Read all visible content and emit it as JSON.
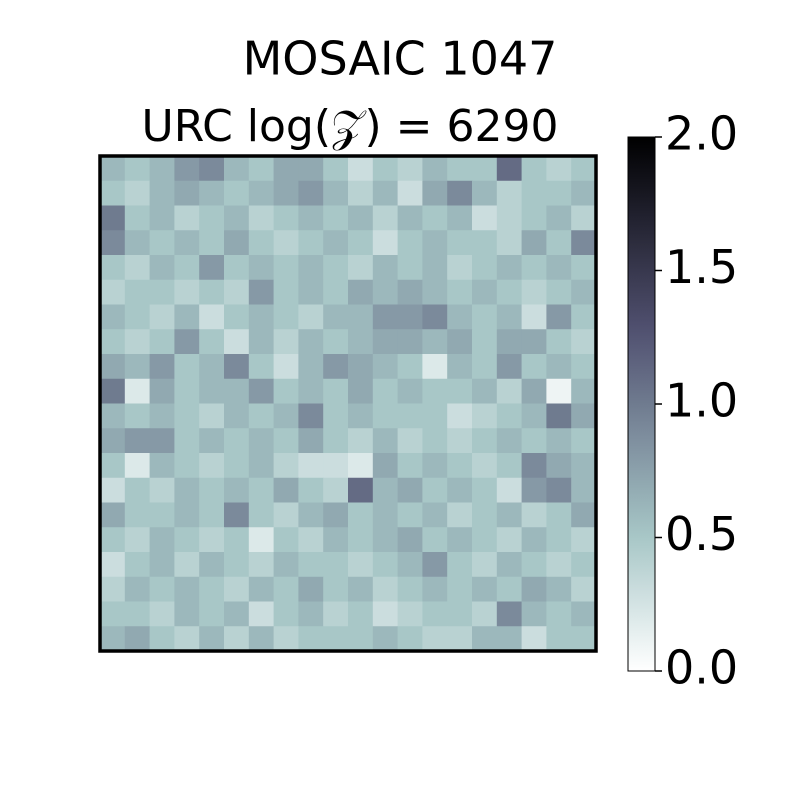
{
  "chart_data": {
    "type": "heatmap",
    "title": "MOSAIC 1047",
    "subtitle": "URC log(𝒵) = 6290",
    "colormap": "bone_r",
    "clim": [
      0,
      2
    ],
    "cticks": [
      {
        "value": 0,
        "label": "0.0"
      },
      {
        "value": 0.5,
        "label": "0.5"
      },
      {
        "value": 1,
        "label": "1.0"
      },
      {
        "value": 1.5,
        "label": "1.5"
      },
      {
        "value": 2,
        "label": "2.0"
      }
    ],
    "z": [
      [
        0.6,
        0.5,
        0.6,
        0.8,
        0.9,
        0.6,
        0.5,
        0.7,
        0.7,
        0.5,
        0.3,
        0.5,
        0.4,
        0.6,
        0.5,
        0.5,
        1.1,
        0.5,
        0.4,
        0.5
      ],
      [
        0.5,
        0.4,
        0.6,
        0.7,
        0.6,
        0.5,
        0.6,
        0.7,
        0.8,
        0.6,
        0.4,
        0.6,
        0.3,
        0.7,
        0.9,
        0.6,
        0.4,
        0.5,
        0.5,
        0.6
      ],
      [
        1.0,
        0.5,
        0.6,
        0.4,
        0.5,
        0.6,
        0.4,
        0.5,
        0.6,
        0.5,
        0.6,
        0.4,
        0.6,
        0.5,
        0.6,
        0.3,
        0.4,
        0.5,
        0.6,
        0.4
      ],
      [
        0.9,
        0.6,
        0.5,
        0.6,
        0.5,
        0.7,
        0.5,
        0.4,
        0.5,
        0.6,
        0.5,
        0.3,
        0.5,
        0.6,
        0.5,
        0.5,
        0.4,
        0.7,
        0.5,
        0.9
      ],
      [
        0.5,
        0.4,
        0.6,
        0.5,
        0.8,
        0.5,
        0.6,
        0.5,
        0.6,
        0.5,
        0.4,
        0.6,
        0.5,
        0.6,
        0.4,
        0.5,
        0.6,
        0.5,
        0.6,
        0.5
      ],
      [
        0.4,
        0.5,
        0.5,
        0.4,
        0.5,
        0.4,
        0.8,
        0.5,
        0.6,
        0.5,
        0.7,
        0.6,
        0.7,
        0.6,
        0.5,
        0.6,
        0.5,
        0.4,
        0.5,
        0.6
      ],
      [
        0.6,
        0.5,
        0.4,
        0.6,
        0.3,
        0.5,
        0.6,
        0.5,
        0.4,
        0.6,
        0.6,
        0.8,
        0.8,
        0.9,
        0.6,
        0.5,
        0.6,
        0.3,
        0.8,
        0.5
      ],
      [
        0.5,
        0.4,
        0.5,
        0.8,
        0.5,
        0.3,
        0.6,
        0.4,
        0.6,
        0.5,
        0.6,
        0.7,
        0.7,
        0.6,
        0.7,
        0.5,
        0.7,
        0.7,
        0.5,
        0.4
      ],
      [
        0.7,
        0.6,
        0.8,
        0.5,
        0.6,
        0.9,
        0.5,
        0.3,
        0.6,
        0.8,
        0.7,
        0.6,
        0.5,
        0.2,
        0.6,
        0.5,
        0.8,
        0.5,
        0.6,
        0.5
      ],
      [
        1.0,
        0.2,
        0.7,
        0.5,
        0.6,
        0.6,
        0.8,
        0.5,
        0.6,
        0.5,
        0.7,
        0.5,
        0.6,
        0.5,
        0.5,
        0.6,
        0.4,
        0.7,
        0.1,
        0.6
      ],
      [
        0.6,
        0.5,
        0.6,
        0.5,
        0.4,
        0.6,
        0.5,
        0.6,
        0.9,
        0.5,
        0.6,
        0.5,
        0.5,
        0.5,
        0.3,
        0.4,
        0.5,
        0.6,
        1.0,
        0.7
      ],
      [
        0.7,
        0.8,
        0.8,
        0.5,
        0.6,
        0.5,
        0.6,
        0.5,
        0.7,
        0.5,
        0.4,
        0.6,
        0.4,
        0.5,
        0.4,
        0.5,
        0.6,
        0.5,
        0.6,
        0.5
      ],
      [
        0.5,
        0.2,
        0.6,
        0.5,
        0.4,
        0.5,
        0.6,
        0.4,
        0.3,
        0.3,
        0.2,
        0.7,
        0.5,
        0.6,
        0.5,
        0.4,
        0.5,
        0.9,
        0.7,
        0.6
      ],
      [
        0.3,
        0.5,
        0.4,
        0.6,
        0.5,
        0.6,
        0.5,
        0.7,
        0.5,
        0.4,
        1.1,
        0.6,
        0.7,
        0.5,
        0.6,
        0.5,
        0.3,
        0.8,
        0.9,
        0.6
      ],
      [
        0.7,
        0.5,
        0.5,
        0.6,
        0.5,
        0.9,
        0.5,
        0.4,
        0.6,
        0.7,
        0.5,
        0.6,
        0.5,
        0.6,
        0.4,
        0.5,
        0.6,
        0.4,
        0.5,
        0.7
      ],
      [
        0.5,
        0.4,
        0.6,
        0.5,
        0.4,
        0.5,
        0.2,
        0.5,
        0.4,
        0.6,
        0.5,
        0.6,
        0.7,
        0.5,
        0.6,
        0.5,
        0.4,
        0.6,
        0.5,
        0.4
      ],
      [
        0.3,
        0.5,
        0.6,
        0.4,
        0.6,
        0.5,
        0.4,
        0.6,
        0.5,
        0.5,
        0.4,
        0.5,
        0.6,
        0.8,
        0.5,
        0.4,
        0.6,
        0.5,
        0.4,
        0.5
      ],
      [
        0.4,
        0.6,
        0.5,
        0.6,
        0.5,
        0.4,
        0.6,
        0.5,
        0.7,
        0.5,
        0.6,
        0.4,
        0.5,
        0.6,
        0.5,
        0.6,
        0.5,
        0.7,
        0.6,
        0.4
      ],
      [
        0.5,
        0.5,
        0.4,
        0.6,
        0.5,
        0.6,
        0.3,
        0.5,
        0.6,
        0.4,
        0.5,
        0.3,
        0.4,
        0.5,
        0.5,
        0.4,
        0.9,
        0.6,
        0.5,
        0.6
      ],
      [
        0.6,
        0.7,
        0.5,
        0.4,
        0.6,
        0.4,
        0.6,
        0.4,
        0.5,
        0.5,
        0.5,
        0.6,
        0.5,
        0.4,
        0.4,
        0.6,
        0.6,
        0.3,
        0.5,
        0.5
      ]
    ]
  }
}
